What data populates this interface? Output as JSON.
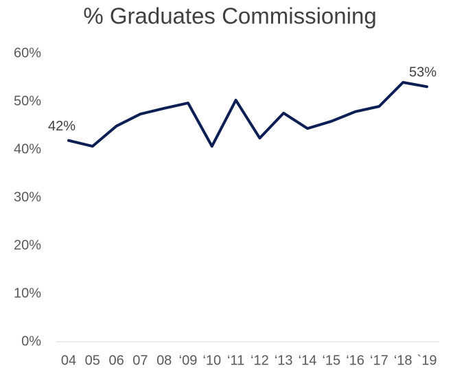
{
  "chart_data": {
    "type": "line",
    "title": "% Graduates Commissioning",
    "categories": [
      "04",
      "05",
      "06",
      "07",
      "08",
      "‘09",
      "‘10",
      "‘11",
      "‘12",
      "‘13",
      "‘14",
      "‘15",
      "‘16",
      "‘17",
      "‘18",
      "`19"
    ],
    "series": [
      {
        "name": "% Graduates Commissioning",
        "color": "#0c1f55",
        "values": [
          41.9,
          40.7,
          44.9,
          47.4,
          48.6,
          49.7,
          40.7,
          50.3,
          42.4,
          47.6,
          44.4,
          45.9,
          47.9,
          49.0,
          54.0,
          53.1
        ],
        "value_labels": [
          "42%",
          null,
          null,
          null,
          null,
          null,
          null,
          null,
          null,
          null,
          null,
          null,
          null,
          null,
          null,
          "53%"
        ]
      }
    ],
    "ylim": [
      0,
      60
    ],
    "yticks": [
      {
        "value": 0,
        "label": "0%"
      },
      {
        "value": 10,
        "label": "10%"
      },
      {
        "value": 20,
        "label": "20%"
      },
      {
        "value": 30,
        "label": "30%"
      },
      {
        "value": 40,
        "label": "40%"
      },
      {
        "value": 50,
        "label": "50%"
      },
      {
        "value": 60,
        "label": "60%"
      }
    ],
    "grid": false
  }
}
